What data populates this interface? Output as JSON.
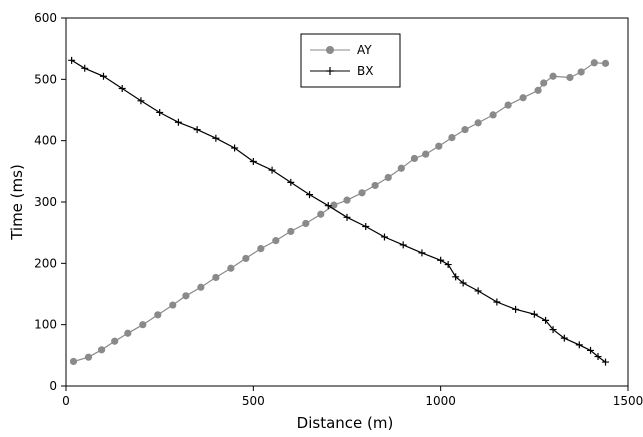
{
  "chart_data": {
    "type": "line",
    "title": "",
    "xlabel": "Distance (m)",
    "ylabel": "Time (ms)",
    "xlim": [
      0,
      1500
    ],
    "ylim": [
      0,
      600
    ],
    "xticks": [
      0,
      500,
      1000,
      1500
    ],
    "yticks": [
      0,
      100,
      200,
      300,
      400,
      500,
      600
    ],
    "grid": false,
    "legend_placement": "top-center",
    "series": [
      {
        "name": "AY",
        "color": "#8a8a8a",
        "marker": "circle",
        "x": [
          20,
          60,
          95,
          130,
          165,
          205,
          245,
          285,
          320,
          360,
          400,
          440,
          480,
          520,
          560,
          600,
          640,
          680,
          715,
          750,
          790,
          825,
          860,
          895,
          930,
          960,
          995,
          1030,
          1065,
          1100,
          1140,
          1180,
          1220,
          1260,
          1275,
          1300,
          1345,
          1375,
          1410,
          1440
        ],
        "y": [
          40,
          47,
          59,
          73,
          86,
          100,
          116,
          132,
          147,
          161,
          177,
          192,
          208,
          224,
          237,
          252,
          265,
          280,
          295,
          303,
          315,
          327,
          340,
          355,
          371,
          378,
          391,
          405,
          418,
          429,
          442,
          458,
          470,
          482,
          494,
          505,
          503,
          512,
          527,
          526
        ]
      },
      {
        "name": "BX",
        "color": "#000000",
        "marker": "plus",
        "x": [
          15,
          50,
          100,
          150,
          200,
          250,
          300,
          350,
          400,
          450,
          500,
          550,
          600,
          650,
          700,
          750,
          800,
          850,
          900,
          950,
          1000,
          1020,
          1040,
          1060,
          1100,
          1150,
          1200,
          1250,
          1280,
          1300,
          1330,
          1370,
          1400,
          1420,
          1440
        ],
        "y": [
          531,
          518,
          505,
          485,
          465,
          446,
          430,
          418,
          404,
          388,
          366,
          352,
          332,
          312,
          294,
          275,
          260,
          243,
          230,
          217,
          205,
          198,
          178,
          168,
          155,
          137,
          125,
          117,
          107,
          92,
          78,
          67,
          58,
          48,
          39
        ]
      }
    ]
  }
}
